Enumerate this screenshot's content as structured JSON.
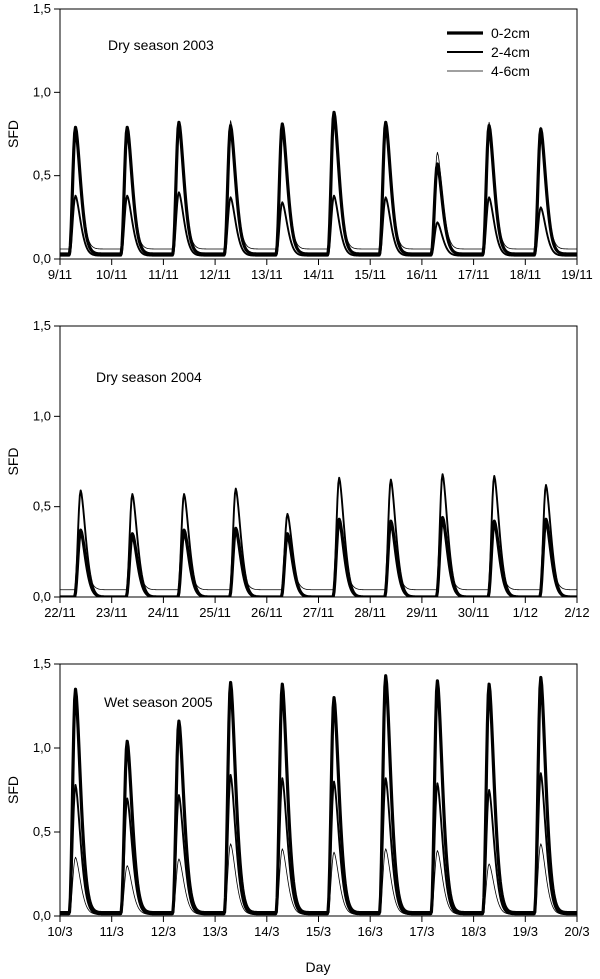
{
  "figure": {
    "xlabel": "Day"
  },
  "chart_data": [
    {
      "type": "line",
      "annotation": "Dry season 2003",
      "ylabel": "SFD",
      "ylim": [
        0,
        1.5
      ],
      "yticks": [
        "0,0",
        "0,5",
        "1,0",
        "1,5"
      ],
      "xticks": [
        "9/11",
        "10/11",
        "11/11",
        "12/11",
        "13/11",
        "14/11",
        "15/11",
        "16/11",
        "17/11",
        "18/11",
        "19/11"
      ],
      "xlim": [
        0,
        10
      ],
      "legend": {
        "placement": "top-right",
        "entries": [
          "0-2cm",
          "2-4cm",
          "4-6cm"
        ]
      },
      "series": [
        {
          "name": "0-2cm",
          "peak_day": [
            0.3,
            1.3,
            2.3,
            3.3,
            4.3,
            5.3,
            6.3,
            7.3,
            8.3,
            9.3
          ],
          "values": [
            0.79,
            0.79,
            0.82,
            0.8,
            0.81,
            0.88,
            0.82,
            0.57,
            0.8,
            0.78
          ],
          "baseline": 0.03
        },
        {
          "name": "2-4cm",
          "peak_day": [
            0.3,
            1.3,
            2.3,
            3.3,
            4.3,
            5.3,
            6.3,
            7.3,
            8.3,
            9.3
          ],
          "values": [
            0.38,
            0.38,
            0.4,
            0.37,
            0.34,
            0.38,
            0.37,
            0.22,
            0.37,
            0.31
          ],
          "baseline": 0.02
        },
        {
          "name": "4-6cm",
          "peak_day": [
            0.3,
            1.3,
            2.3,
            3.3,
            4.3,
            5.3,
            6.3,
            7.3,
            8.3,
            9.3
          ],
          "values": [
            0.77,
            0.72,
            0.8,
            0.83,
            0.78,
            0.84,
            0.8,
            0.64,
            0.82,
            0.79
          ],
          "baseline": 0.06
        }
      ]
    },
    {
      "type": "line",
      "annotation": "Dry season 2004",
      "ylabel": "SFD",
      "ylim": [
        0,
        1.5
      ],
      "yticks": [
        "0,0",
        "0,5",
        "1,0",
        "1,5"
      ],
      "xticks": [
        "22/11",
        "23/11",
        "24/11",
        "25/11",
        "26/11",
        "27/11",
        "28/11",
        "29/11",
        "30/11",
        "1/12",
        "2/12"
      ],
      "xlim": [
        0,
        10
      ],
      "series": [
        {
          "name": "0-2cm",
          "peak_day": [
            0.4,
            1.4,
            2.4,
            3.4,
            4.4,
            5.4,
            6.4,
            7.4,
            8.4,
            9.4
          ],
          "values": [
            0.37,
            0.35,
            0.37,
            0.38,
            0.35,
            0.43,
            0.42,
            0.44,
            0.42,
            0.43
          ],
          "baseline": 0.0
        },
        {
          "name": "2-4cm",
          "peak_day": [
            0.4,
            1.4,
            2.4,
            3.4,
            4.4,
            5.4,
            6.4,
            7.4,
            8.4,
            9.4
          ],
          "values": [
            0.59,
            0.57,
            0.57,
            0.6,
            0.46,
            0.66,
            0.65,
            0.68,
            0.67,
            0.62
          ],
          "baseline": 0.0
        },
        {
          "name": "4-6cm",
          "peak_day": [
            0.4,
            1.4,
            2.4,
            3.4,
            4.4,
            5.4,
            6.4,
            7.4,
            8.4,
            9.4
          ],
          "values": [
            0.34,
            0.33,
            0.33,
            0.35,
            0.32,
            0.4,
            0.38,
            0.4,
            0.39,
            0.4
          ],
          "baseline": 0.04
        }
      ]
    },
    {
      "type": "line",
      "annotation": "Wet season 2005",
      "ylabel": "SFD",
      "ylim": [
        0,
        1.5
      ],
      "yticks": [
        "0,0",
        "0,5",
        "1,0",
        "1,5"
      ],
      "xticks": [
        "10/3",
        "11/3",
        "12/3",
        "13/3",
        "14/3",
        "15/3",
        "16/3",
        "17/3",
        "18/3",
        "19/3",
        "20/3"
      ],
      "xlim": [
        0,
        10
      ],
      "series": [
        {
          "name": "0-2cm",
          "peak_day": [
            0.3,
            1.3,
            2.3,
            3.3,
            4.3,
            5.3,
            6.3,
            7.3,
            8.3,
            9.3
          ],
          "values": [
            1.35,
            1.04,
            1.16,
            1.39,
            1.38,
            1.3,
            1.43,
            1.4,
            1.38,
            1.42
          ],
          "baseline": 0.02
        },
        {
          "name": "2-4cm",
          "peak_day": [
            0.3,
            1.3,
            2.3,
            3.3,
            4.3,
            5.3,
            6.3,
            7.3,
            8.3,
            9.3
          ],
          "values": [
            0.78,
            0.7,
            0.72,
            0.84,
            0.82,
            0.8,
            0.82,
            0.79,
            0.75,
            0.85
          ],
          "baseline": 0.01
        },
        {
          "name": "4-6cm",
          "peak_day": [
            0.3,
            1.3,
            2.3,
            3.3,
            4.3,
            5.3,
            6.3,
            7.3,
            8.3,
            9.3
          ],
          "values": [
            0.35,
            0.3,
            0.34,
            0.43,
            0.4,
            0.38,
            0.4,
            0.39,
            0.31,
            0.43
          ],
          "baseline": 0.01
        }
      ]
    }
  ]
}
